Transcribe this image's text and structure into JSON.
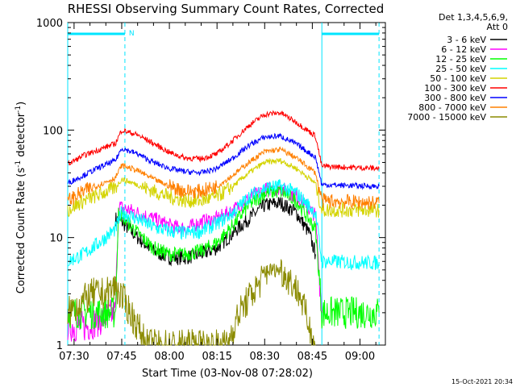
{
  "chart_data": {
    "type": "line",
    "title": "RHESSI Observing Summary Count Rates, Corrected",
    "xlabel": "Start Time (03-Nov-08 07:28:02)",
    "ylabel_main": "Corrected Count Rate (s",
    "ylabel_sup1": "-1",
    "ylabel_mid": " detector",
    "ylabel_sup2": "-1",
    "ylabel_end": ")",
    "ylog": true,
    "ylim": [
      1,
      1000
    ],
    "xlim": [
      "07:28",
      "09:08"
    ],
    "x_ticks": [
      "07:30",
      "07:45",
      "08:00",
      "08:15",
      "08:30",
      "08:45",
      "09:00"
    ],
    "y_ticks": [
      "1",
      "10",
      "100",
      "1000"
    ],
    "legend_header": [
      "Det 1,3,4,5,6,9,",
      "Att 0"
    ],
    "legend_placement": "outside-right",
    "footer": "15-Oct-2021 20:34",
    "flag_label": "N",
    "night_intervals": [
      [
        "07:28",
        "07:46"
      ],
      [
        "08:48",
        "09:06"
      ]
    ],
    "series": [
      {
        "name": "3 - 6 keV",
        "color": "#000000",
        "values": [
          [
            "07:43",
            15
          ],
          [
            "07:45",
            14
          ],
          [
            "07:50",
            10
          ],
          [
            "07:55",
            7.5
          ],
          [
            "08:00",
            6.5
          ],
          [
            "08:05",
            6.5
          ],
          [
            "08:10",
            7
          ],
          [
            "08:15",
            8
          ],
          [
            "08:20",
            11
          ],
          [
            "08:25",
            15
          ],
          [
            "08:30",
            20
          ],
          [
            "08:35",
            21
          ],
          [
            "08:40",
            17
          ],
          [
            "08:44",
            11
          ],
          [
            "08:46",
            7
          ]
        ]
      },
      {
        "name": "6 - 12 keV",
        "color": "#ff00ff",
        "values": [
          [
            "07:28",
            1.5
          ],
          [
            "07:34",
            1.5
          ],
          [
            "07:43",
            2
          ],
          [
            "07:44",
            20
          ],
          [
            "07:45",
            19
          ],
          [
            "07:50",
            17
          ],
          [
            "07:55",
            15
          ],
          [
            "08:00",
            13
          ],
          [
            "08:05",
            12
          ],
          [
            "08:10",
            14
          ],
          [
            "08:15",
            15
          ],
          [
            "08:20",
            18
          ],
          [
            "08:25",
            23
          ],
          [
            "08:30",
            28
          ],
          [
            "08:35",
            29
          ],
          [
            "08:40",
            24
          ],
          [
            "08:46",
            16
          ],
          [
            "08:48",
            2
          ]
        ]
      },
      {
        "name": "12 - 25 keV",
        "color": "#00ff00",
        "values": [
          [
            "07:28",
            2
          ],
          [
            "07:43",
            2
          ],
          [
            "07:44",
            17
          ],
          [
            "07:45",
            16
          ],
          [
            "07:50",
            11
          ],
          [
            "07:55",
            8
          ],
          [
            "08:00",
            7
          ],
          [
            "08:05",
            7
          ],
          [
            "08:10",
            7.5
          ],
          [
            "08:15",
            9
          ],
          [
            "08:20",
            13
          ],
          [
            "08:25",
            20
          ],
          [
            "08:30",
            26
          ],
          [
            "08:35",
            27
          ],
          [
            "08:40",
            22
          ],
          [
            "08:46",
            12
          ],
          [
            "08:48",
            2
          ],
          [
            "09:06",
            2
          ]
        ]
      },
      {
        "name": "25 - 50 keV",
        "color": "#00ffff",
        "values": [
          [
            "07:28",
            6
          ],
          [
            "07:33",
            7
          ],
          [
            "07:38",
            9
          ],
          [
            "07:43",
            12
          ],
          [
            "07:45",
            17
          ],
          [
            "07:50",
            15
          ],
          [
            "07:55",
            12.5
          ],
          [
            "08:00",
            11.5
          ],
          [
            "08:05",
            11
          ],
          [
            "08:10",
            11.5
          ],
          [
            "08:15",
            13.5
          ],
          [
            "08:20",
            17
          ],
          [
            "08:25",
            24
          ],
          [
            "08:30",
            29
          ],
          [
            "08:35",
            30
          ],
          [
            "08:40",
            26
          ],
          [
            "08:46",
            17
          ],
          [
            "08:48",
            6
          ],
          [
            "09:06",
            5.8
          ]
        ]
      },
      {
        "name": "50 - 100 keV",
        "color": "#d4d400",
        "values": [
          [
            "07:28",
            18
          ],
          [
            "07:33",
            22
          ],
          [
            "07:38",
            25
          ],
          [
            "07:43",
            29
          ],
          [
            "07:45",
            35
          ],
          [
            "07:50",
            31
          ],
          [
            "07:55",
            27
          ],
          [
            "08:00",
            24
          ],
          [
            "08:05",
            22
          ],
          [
            "08:10",
            22
          ],
          [
            "08:15",
            24
          ],
          [
            "08:20",
            30
          ],
          [
            "08:25",
            40
          ],
          [
            "08:30",
            50
          ],
          [
            "08:35",
            52
          ],
          [
            "08:40",
            44
          ],
          [
            "08:46",
            32
          ],
          [
            "08:48",
            18
          ],
          [
            "09:06",
            18
          ]
        ]
      },
      {
        "name": "100 - 300 keV",
        "color": "#ff0000",
        "values": [
          [
            "07:28",
            48
          ],
          [
            "07:33",
            58
          ],
          [
            "07:38",
            66
          ],
          [
            "07:43",
            75
          ],
          [
            "07:45",
            100
          ],
          [
            "07:50",
            90
          ],
          [
            "07:55",
            75
          ],
          [
            "08:00",
            62
          ],
          [
            "08:05",
            55
          ],
          [
            "08:10",
            54
          ],
          [
            "08:15",
            60
          ],
          [
            "08:20",
            80
          ],
          [
            "08:25",
            110
          ],
          [
            "08:30",
            140
          ],
          [
            "08:35",
            145
          ],
          [
            "08:40",
            118
          ],
          [
            "08:46",
            88
          ],
          [
            "08:48",
            46
          ],
          [
            "09:06",
            44
          ]
        ]
      },
      {
        "name": "300 - 800 keV",
        "color": "#0000ff",
        "values": [
          [
            "07:28",
            32
          ],
          [
            "07:33",
            38
          ],
          [
            "07:38",
            45
          ],
          [
            "07:43",
            52
          ],
          [
            "07:45",
            68
          ],
          [
            "07:50",
            60
          ],
          [
            "07:55",
            50
          ],
          [
            "08:00",
            44
          ],
          [
            "08:05",
            41
          ],
          [
            "08:10",
            40
          ],
          [
            "08:15",
            44
          ],
          [
            "08:20",
            55
          ],
          [
            "08:25",
            72
          ],
          [
            "08:30",
            86
          ],
          [
            "08:35",
            88
          ],
          [
            "08:40",
            74
          ],
          [
            "08:46",
            56
          ],
          [
            "08:48",
            31
          ],
          [
            "09:06",
            30
          ]
        ]
      },
      {
        "name": "800 - 7000 keV",
        "color": "#ff8000",
        "values": [
          [
            "07:28",
            22
          ],
          [
            "07:33",
            27
          ],
          [
            "07:38",
            31
          ],
          [
            "07:43",
            36
          ],
          [
            "07:45",
            47
          ],
          [
            "07:50",
            42
          ],
          [
            "07:55",
            35
          ],
          [
            "08:00",
            30
          ],
          [
            "08:05",
            27
          ],
          [
            "08:10",
            27
          ],
          [
            "08:15",
            30
          ],
          [
            "08:20",
            38
          ],
          [
            "08:25",
            50
          ],
          [
            "08:30",
            63
          ],
          [
            "08:35",
            66
          ],
          [
            "08:40",
            55
          ],
          [
            "08:46",
            40
          ],
          [
            "08:48",
            22
          ],
          [
            "09:06",
            21
          ]
        ]
      },
      {
        "name": "7000 - 15000 keV",
        "color": "#8b8b00",
        "values": [
          [
            "07:28",
            2
          ],
          [
            "07:32",
            2.5
          ],
          [
            "07:36",
            3
          ],
          [
            "07:40",
            3
          ],
          [
            "07:43",
            3.5
          ],
          [
            "07:46",
            2.5
          ],
          [
            "07:50",
            1.5
          ],
          [
            "07:53",
            1
          ],
          [
            "08:18",
            1
          ],
          [
            "08:22",
            2
          ],
          [
            "08:26",
            3
          ],
          [
            "08:29",
            4
          ],
          [
            "08:31",
            5
          ],
          [
            "08:35",
            5
          ],
          [
            "08:38",
            4
          ],
          [
            "08:41",
            3
          ],
          [
            "08:44",
            1.5
          ],
          [
            "08:46",
            1
          ]
        ]
      }
    ]
  }
}
